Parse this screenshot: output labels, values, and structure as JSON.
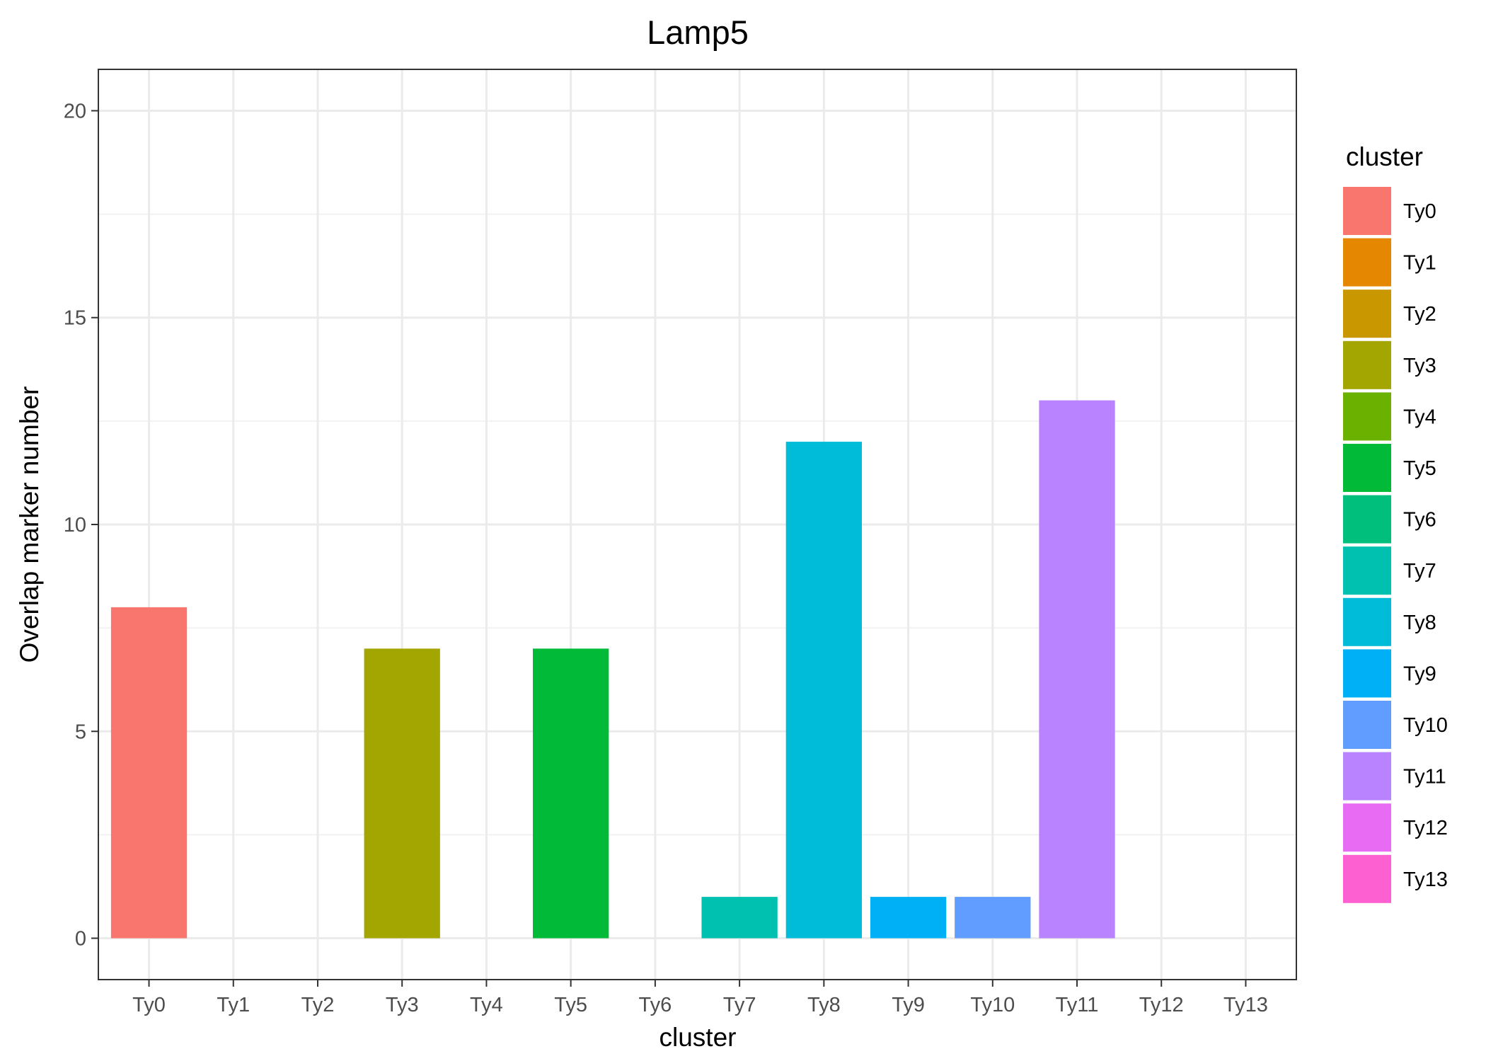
{
  "chart_data": {
    "type": "bar",
    "title": "Lamp5",
    "xlabel": "cluster",
    "ylabel": "Overlap marker number",
    "categories": [
      "Ty0",
      "Ty1",
      "Ty2",
      "Ty3",
      "Ty4",
      "Ty5",
      "Ty6",
      "Ty7",
      "Ty8",
      "Ty9",
      "Ty10",
      "Ty11",
      "Ty12",
      "Ty13"
    ],
    "values": [
      8,
      0,
      0,
      7,
      0,
      7,
      0,
      1,
      12,
      1,
      1,
      13,
      0,
      0
    ],
    "colors": [
      "#F8766D",
      "#E58700",
      "#C99800",
      "#A3A500",
      "#6BB100",
      "#00BA38",
      "#00BF7D",
      "#00C0AF",
      "#00BCD8",
      "#00B0F6",
      "#619CFF",
      "#B983FF",
      "#E76BF3",
      "#FD61D1"
    ],
    "ylim": [
      -1,
      21
    ],
    "yticks": [
      0,
      5,
      10,
      15,
      20
    ],
    "grid": true,
    "legend": {
      "title": "cluster",
      "position": "right",
      "entries": [
        "Ty0",
        "Ty1",
        "Ty2",
        "Ty3",
        "Ty4",
        "Ty5",
        "Ty6",
        "Ty7",
        "Ty8",
        "Ty9",
        "Ty10",
        "Ty11",
        "Ty12",
        "Ty13"
      ]
    }
  }
}
